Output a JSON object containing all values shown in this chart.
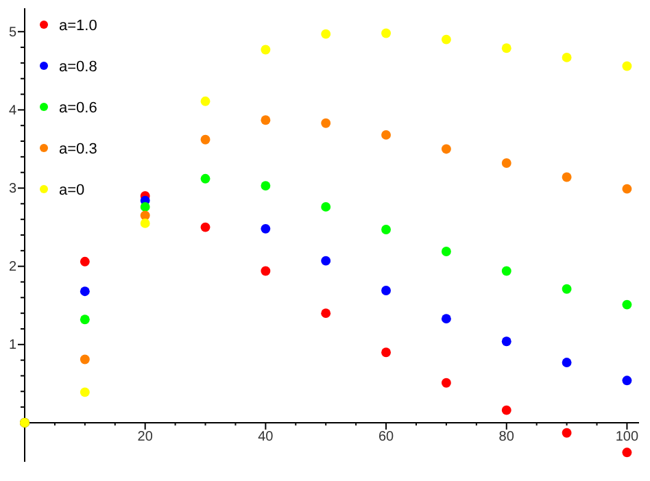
{
  "chart_data": {
    "type": "scatter",
    "marker": "circle",
    "legend": "top left",
    "grid": false,
    "x": [
      0,
      10,
      20,
      30,
      40,
      50,
      60,
      70,
      80,
      90,
      100
    ],
    "xlim": [
      0,
      102
    ],
    "ylim": [
      -0.5,
      5.3
    ],
    "xticks": [
      {
        "value": 5,
        "label": null
      },
      {
        "value": 10,
        "label": null
      },
      {
        "value": 15,
        "label": null
      },
      20,
      {
        "value": 25,
        "label": null
      },
      {
        "value": 30,
        "label": null
      },
      {
        "value": 35,
        "label": null
      },
      40,
      {
        "value": 45,
        "label": null
      },
      {
        "value": 50,
        "label": null
      },
      {
        "value": 55,
        "label": null
      },
      60,
      {
        "value": 65,
        "label": null
      },
      {
        "value": 70,
        "label": null
      },
      {
        "value": 75,
        "label": null
      },
      80,
      {
        "value": 85,
        "label": null
      },
      {
        "value": 90,
        "label": null
      },
      {
        "value": 95,
        "label": null
      },
      100
    ],
    "yticks": [
      {
        "value": 0.2,
        "label": null
      },
      {
        "value": 0.4,
        "label": null
      },
      {
        "value": 0.6,
        "label": null
      },
      {
        "value": 0.8,
        "label": null
      },
      1,
      {
        "value": 1.2,
        "label": null
      },
      {
        "value": 1.4,
        "label": null
      },
      {
        "value": 1.6,
        "label": null
      },
      {
        "value": 1.8,
        "label": null
      },
      2,
      {
        "value": 2.2,
        "label": null
      },
      {
        "value": 2.4,
        "label": null
      },
      {
        "value": 2.6,
        "label": null
      },
      {
        "value": 2.8,
        "label": null
      },
      3,
      {
        "value": 3.2,
        "label": null
      },
      {
        "value": 3.4,
        "label": null
      },
      {
        "value": 3.6,
        "label": null
      },
      {
        "value": 3.8,
        "label": null
      },
      4,
      {
        "value": 4.2,
        "label": null
      },
      {
        "value": 4.4,
        "label": null
      },
      {
        "value": 4.6,
        "label": null
      },
      {
        "value": 4.8,
        "label": null
      },
      5
    ],
    "series": [
      {
        "name": "a=1.0",
        "color": "#ff0000",
        "values": [
          0,
          2.06,
          2.9,
          2.5,
          1.94,
          1.4,
          0.9,
          0.51,
          0.16,
          -0.13,
          -0.38
        ]
      },
      {
        "name": "a=0.8",
        "color": "#0000ff",
        "values": [
          0,
          1.68,
          2.84,
          null,
          2.48,
          2.07,
          1.69,
          1.33,
          1.04,
          0.77,
          0.54
        ]
      },
      {
        "name": "a=0.6",
        "color": "#00ff00",
        "values": [
          0,
          1.32,
          2.76,
          3.12,
          3.03,
          2.76,
          2.47,
          2.19,
          1.94,
          1.71,
          1.51
        ]
      },
      {
        "name": "a=0.3",
        "color": "#ff8000",
        "values": [
          0,
          0.81,
          2.65,
          3.62,
          3.87,
          3.83,
          3.68,
          3.5,
          3.32,
          3.14,
          2.99
        ]
      },
      {
        "name": "a=0",
        "color": "#ffff00",
        "values": [
          0,
          0.39,
          2.55,
          4.11,
          4.77,
          4.97,
          4.98,
          4.9,
          4.79,
          4.67,
          4.56
        ]
      }
    ]
  }
}
